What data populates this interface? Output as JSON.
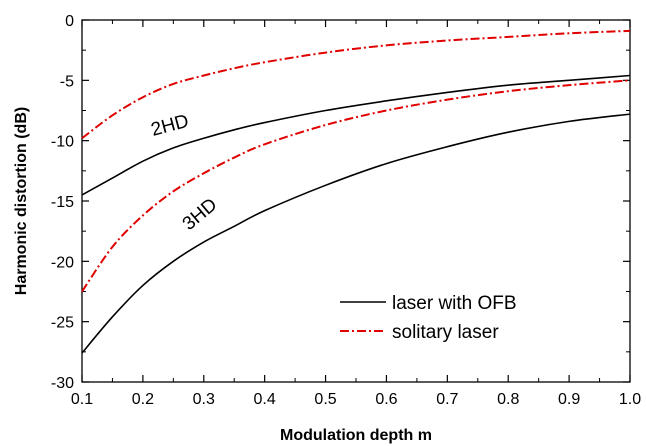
{
  "chart_data": {
    "type": "line",
    "title": "",
    "xlabel": "Modulation depth m",
    "ylabel": "Harmonic distortion  (dB)",
    "xlim": [
      0.1,
      1.0
    ],
    "ylim": [
      -30,
      0
    ],
    "x_ticks": [
      "0.1",
      "0.2",
      "0.3",
      "0.4",
      "0.5",
      "0.6",
      "0.7",
      "0.8",
      "0.9",
      "1.0"
    ],
    "y_ticks": [
      "0",
      "-5",
      "-10",
      "-15",
      "-20",
      "-25",
      "-30"
    ],
    "grid": false,
    "legend_position": "bottom-right",
    "legend": [
      {
        "label": "laser with OFB",
        "style": "solid",
        "color": "#000000"
      },
      {
        "label": "solitary laser",
        "style": "dash-dot",
        "color": "#e00000"
      }
    ],
    "annotations": [
      {
        "text": "2HD"
      },
      {
        "text": "3HD"
      }
    ],
    "series": [
      {
        "legend_index": 0,
        "style": "solid",
        "color": "#000000",
        "x": [
          0.1,
          0.15,
          0.2,
          0.25,
          0.3,
          0.35,
          0.4,
          0.5,
          0.6,
          0.7,
          0.8,
          0.9,
          1.0
        ],
        "y": [
          -14.5,
          -13.1,
          -11.7,
          -10.6,
          -9.8,
          -9.1,
          -8.5,
          -7.5,
          -6.7,
          -6.0,
          -5.4,
          -5.0,
          -4.6
        ]
      },
      {
        "legend_index": 1,
        "style": "dash-dot",
        "color": "#e00000",
        "x": [
          0.1,
          0.15,
          0.2,
          0.25,
          0.3,
          0.35,
          0.4,
          0.5,
          0.6,
          0.7,
          0.8,
          0.9,
          1.0
        ],
        "y": [
          -9.8,
          -7.9,
          -6.4,
          -5.3,
          -4.6,
          -4.0,
          -3.5,
          -2.7,
          -2.1,
          -1.7,
          -1.4,
          -1.1,
          -0.9
        ]
      },
      {
        "legend_index": 0,
        "style": "solid",
        "color": "#000000",
        "x": [
          0.1,
          0.15,
          0.2,
          0.25,
          0.3,
          0.35,
          0.4,
          0.5,
          0.6,
          0.7,
          0.8,
          0.9,
          1.0
        ],
        "y": [
          -27.6,
          -24.6,
          -22.0,
          -20.0,
          -18.4,
          -17.1,
          -15.8,
          -13.7,
          -11.9,
          -10.5,
          -9.3,
          -8.4,
          -7.8
        ]
      },
      {
        "legend_index": 1,
        "style": "dash-dot",
        "color": "#e00000",
        "x": [
          0.1,
          0.15,
          0.2,
          0.25,
          0.3,
          0.35,
          0.4,
          0.5,
          0.6,
          0.7,
          0.8,
          0.9,
          1.0
        ],
        "y": [
          -22.5,
          -18.8,
          -16.2,
          -14.2,
          -12.7,
          -11.4,
          -10.3,
          -8.7,
          -7.5,
          -6.6,
          -5.9,
          -5.4,
          -5.0
        ]
      }
    ]
  }
}
